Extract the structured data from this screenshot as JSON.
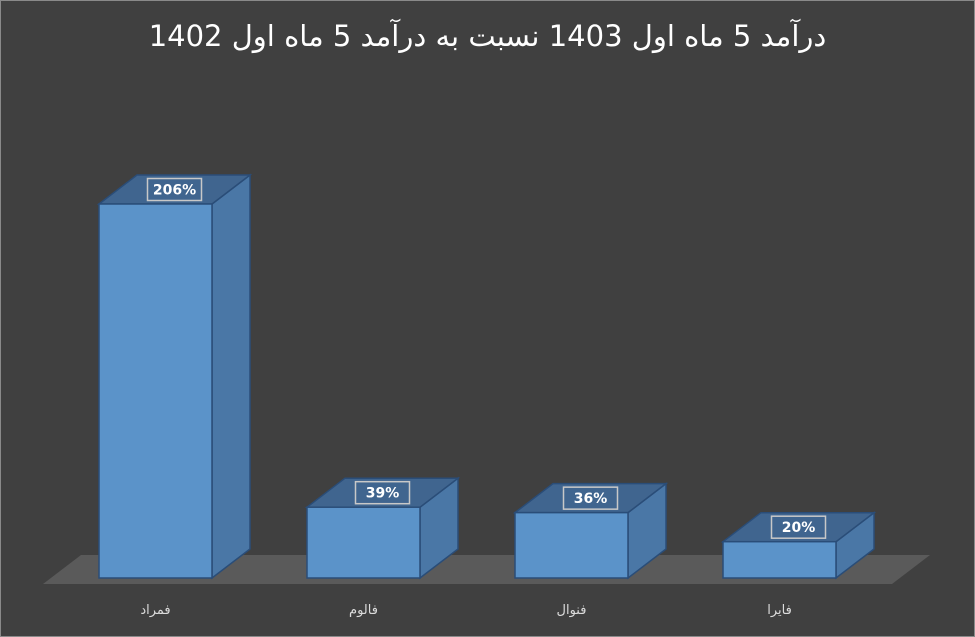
{
  "chart_data": {
    "type": "bar",
    "style": "3d-column",
    "title": "درآمد 5 ماه اول 1403 نسبت به درآمد 5 ماه اول 1402",
    "categories": [
      "فمراد",
      "فالوم",
      "فنوال",
      "فایرا"
    ],
    "values": [
      206,
      39,
      36,
      20
    ],
    "value_labels": [
      "206%",
      "39%",
      "36%",
      "20%"
    ],
    "unit": "%",
    "ylim": [
      0,
      206
    ],
    "grid": false,
    "legend": "none",
    "colors": {
      "bar_front": "#5b93c9",
      "bar_side": "#4a77a6",
      "bar_top": "#40658f",
      "bar_edge": "#2a4d78",
      "floor": "#5a5a5a",
      "background": "#404040",
      "label_box_border": "#c8c8c8"
    }
  }
}
